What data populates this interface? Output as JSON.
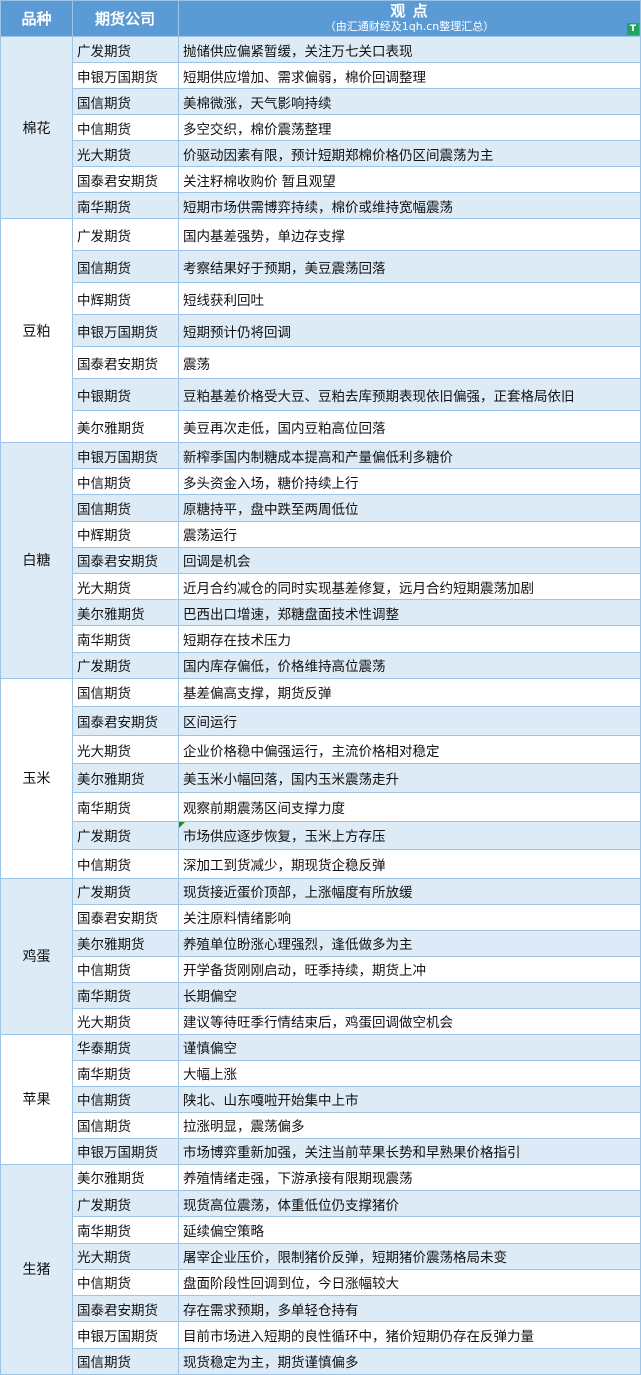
{
  "header": {
    "col1": "品种",
    "col2": "期货公司",
    "col3_title": "观  点",
    "col3_sub": "（由汇通财经及1qh.cn整理汇总）",
    "filter_icon": "filter-icon"
  },
  "colors": {
    "header": "#5b9bd5",
    "stripe": "#ddebf7",
    "border": "#9dc3e6"
  },
  "groups": [
    {
      "name": "棉花",
      "rows": [
        [
          "广发期货",
          "抛储供应偏紧暂缓，关注万七关口表现"
        ],
        [
          "申银万国期货",
          "短期供应增加、需求偏弱，棉价回调整理"
        ],
        [
          "国信期货",
          "美棉微涨，天气影响持续"
        ],
        [
          "中信期货",
          "多空交织，棉价震荡整理"
        ],
        [
          "光大期货",
          "价驱动因素有限，预计短期郑棉价格仍区间震荡为主"
        ],
        [
          "国泰君安期货",
          "关注籽棉收购价 暂且观望"
        ],
        [
          "南华期货",
          "短期市场供需博弈持续，棉价或维持宽幅震荡"
        ]
      ]
    },
    {
      "name": "豆粕",
      "rows": [
        [
          "广发期货",
          "国内基差强势，单边存支撑"
        ],
        [
          "国信期货",
          "考察结果好于预期，美豆震荡回落"
        ],
        [
          "中辉期货",
          "短线获利回吐"
        ],
        [
          "申银万国期货",
          "短期预计仍将回调"
        ],
        [
          "国泰君安期货",
          "震荡"
        ],
        [
          "中银期货",
          "豆粕基差价格受大豆、豆粕去库预期表现依旧偏强，正套格局依旧"
        ],
        [
          "美尔雅期货",
          "美豆再次走低，国内豆粕高位回落"
        ]
      ]
    },
    {
      "name": "白糖",
      "rows": [
        [
          "申银万国期货",
          "新榨季国内制糖成本提高和产量偏低利多糖价"
        ],
        [
          "中信期货",
          "多头资金入场，糖价持续上行"
        ],
        [
          "国信期货",
          "原糖持平，盘中跌至两周低位"
        ],
        [
          "中辉期货",
          "震荡运行"
        ],
        [
          "国泰君安期货",
          "回调是机会"
        ],
        [
          "光大期货",
          "近月合约减仓的同时实现基差修复，远月合约短期震荡加剧"
        ],
        [
          "美尔雅期货",
          "巴西出口增速，郑糖盘面技术性调整"
        ],
        [
          "南华期货",
          "短期存在技术压力"
        ],
        [
          "广发期货",
          "国内库存偏低，价格维持高位震荡"
        ]
      ]
    },
    {
      "name": "玉米",
      "rows": [
        [
          "国信期货",
          "基差偏高支撑，期货反弹"
        ],
        [
          "国泰君安期货",
          "区间运行"
        ],
        [
          "光大期货",
          "企业价格稳中偏强运行，主流价格相对稳定"
        ],
        [
          "美尔雅期货",
          "美玉米小幅回落，国内玉米震荡走升"
        ],
        [
          "南华期货",
          "观察前期震荡区间支撑力度"
        ],
        [
          "广发期货",
          "市场供应逐步恢复，玉米上方存压"
        ],
        [
          "中信期货",
          "深加工到货减少，期现货企稳反弹"
        ]
      ]
    },
    {
      "name": "鸡蛋",
      "rows": [
        [
          "广发期货",
          "现货接近蛋价顶部，上涨幅度有所放缓"
        ],
        [
          "国泰君安期货",
          "关注原料情绪影响"
        ],
        [
          "美尔雅期货",
          "养殖单位盼涨心理强烈，逢低做多为主"
        ],
        [
          "中信期货",
          "开学备货刚刚启动，旺季持续，期货上冲"
        ],
        [
          "南华期货",
          "长期偏空"
        ],
        [
          "光大期货",
          "建议等待旺季行情结束后，鸡蛋回调做空机会"
        ]
      ]
    },
    {
      "name": "苹果",
      "rows": [
        [
          "华泰期货",
          "谨慎偏空"
        ],
        [
          "南华期货",
          "大幅上涨"
        ],
        [
          "中信期货",
          "陕北、山东嘎啦开始集中上市"
        ],
        [
          "国信期货",
          "拉涨明显，震荡偏多"
        ],
        [
          "申银万国期货",
          "市场博弈重新加强，关注当前苹果长势和早熟果价格指引"
        ]
      ]
    },
    {
      "name": "生猪",
      "rows": [
        [
          "美尔雅期货",
          "养殖情绪走强，下游承接有限期现震荡"
        ],
        [
          "广发期货",
          "现货高位震荡，体重低位仍支撑猪价"
        ],
        [
          "南华期货",
          "延续偏空策略"
        ],
        [
          "光大期货",
          "屠宰企业压价，限制猪价反弹，短期猪价震荡格局未变"
        ],
        [
          "中信期货",
          "盘面阶段性回调到位，今日涨幅较大"
        ],
        [
          "国泰君安期货",
          "存在需求预期，多单轻仓持有"
        ],
        [
          "申银万国期货",
          "目前市场进入短期的良性循环中，猪价短期仍存在反弹力量"
        ],
        [
          "国信期货",
          "现货稳定为主，期货谨慎偏多"
        ]
      ]
    }
  ]
}
